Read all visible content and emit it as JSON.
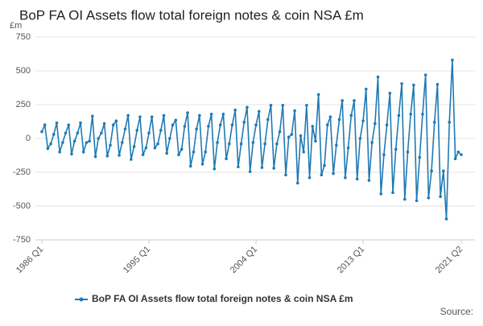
{
  "chart_data": {
    "type": "line",
    "title": "BoP FA OI Assets flow total foreign notes & coin NSA £m",
    "y_unit": "£m",
    "source": "Source:",
    "categories": [
      "1986 Q1",
      null,
      null,
      null,
      null,
      null,
      null,
      null,
      null,
      null,
      null,
      null,
      null,
      null,
      null,
      null,
      null,
      null,
      null,
      null,
      null,
      null,
      null,
      null,
      null,
      null,
      null,
      null,
      null,
      null,
      null,
      null,
      null,
      null,
      null,
      null,
      "1995 Q1",
      null,
      null,
      null,
      null,
      null,
      null,
      null,
      null,
      null,
      null,
      null,
      null,
      null,
      null,
      null,
      null,
      null,
      null,
      null,
      null,
      null,
      null,
      null,
      null,
      null,
      null,
      null,
      null,
      null,
      null,
      null,
      null,
      null,
      null,
      null,
      "2004 Q1",
      null,
      null,
      null,
      null,
      null,
      null,
      null,
      null,
      null,
      null,
      null,
      null,
      null,
      null,
      null,
      null,
      null,
      null,
      null,
      null,
      null,
      null,
      null,
      null,
      null,
      null,
      null,
      null,
      null,
      null,
      null,
      null,
      null,
      null,
      null,
      "2013 Q1",
      null,
      null,
      null,
      null,
      null,
      null,
      null,
      null,
      null,
      null,
      null,
      null,
      null,
      null,
      null,
      null,
      null,
      null,
      null,
      null,
      null,
      null,
      null,
      null,
      null,
      null,
      null,
      null,
      null,
      null,
      null,
      null,
      "2021 Q2"
    ],
    "series": [
      {
        "name": "BoP FA OI Assets flow total foreign notes & coin NSA £m",
        "color": "#1f7ab3",
        "values": [
          50,
          100,
          -75,
          -40,
          30,
          115,
          -100,
          -30,
          40,
          100,
          -115,
          -20,
          40,
          115,
          -100,
          -30,
          -20,
          165,
          -135,
          0,
          40,
          110,
          -130,
          -50,
          100,
          130,
          -125,
          -30,
          70,
          170,
          -155,
          -60,
          60,
          160,
          -120,
          -70,
          40,
          160,
          -70,
          -40,
          60,
          170,
          -110,
          0,
          100,
          135,
          -120,
          -80,
          90,
          190,
          -205,
          -100,
          70,
          170,
          -190,
          -100,
          90,
          180,
          -225,
          -30,
          100,
          180,
          -150,
          -40,
          100,
          210,
          -210,
          -40,
          120,
          230,
          -245,
          -30,
          100,
          200,
          -215,
          -40,
          140,
          245,
          -220,
          -40,
          50,
          245,
          -270,
          10,
          30,
          205,
          -330,
          20,
          -100,
          245,
          -290,
          90,
          -20,
          325,
          -270,
          -200,
          100,
          160,
          -260,
          -50,
          140,
          280,
          -290,
          -70,
          170,
          280,
          -300,
          0,
          130,
          365,
          -310,
          -30,
          110,
          455,
          -410,
          -120,
          100,
          335,
          -400,
          -80,
          170,
          405,
          -450,
          -100,
          180,
          395,
          -460,
          -140,
          180,
          470,
          -440,
          -240,
          120,
          400,
          -430,
          -240,
          -595,
          120,
          580,
          -150,
          -100,
          -120
        ]
      }
    ],
    "ylim": [
      -750,
      750
    ],
    "yticks": [
      -750,
      -500,
      -250,
      0,
      250,
      500,
      750
    ],
    "grid": true
  }
}
